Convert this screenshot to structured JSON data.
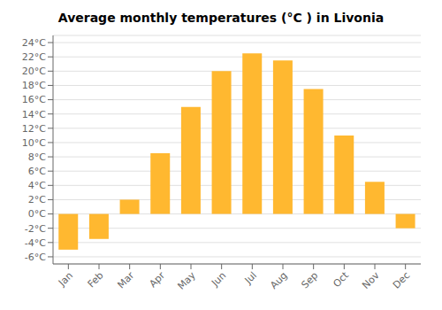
{
  "chart_data": {
    "type": "bar",
    "title": "Average monthly temperatures (°C ) in Livonia",
    "categories": [
      "Jan",
      "Feb",
      "Mar",
      "Apr",
      "May",
      "Jun",
      "Jul",
      "Aug",
      "Sep",
      "Oct",
      "Nov",
      "Dec"
    ],
    "values": [
      -5.0,
      -3.5,
      2.0,
      8.5,
      15.0,
      20.0,
      22.5,
      21.5,
      17.5,
      11.0,
      4.5,
      -2.0
    ],
    "color": "#FFB830",
    "ylim": [
      -7,
      25
    ],
    "yticks": [
      {
        "value": -6,
        "label": "-6°C"
      },
      {
        "value": -4,
        "label": "-4°C"
      },
      {
        "value": -2,
        "label": "-2°C"
      },
      {
        "value": 0,
        "label": "0°C"
      },
      {
        "value": 2,
        "label": "2°C"
      },
      {
        "value": 4,
        "label": "4°C"
      },
      {
        "value": 6,
        "label": "6°C"
      },
      {
        "value": 8,
        "label": "8°C"
      },
      {
        "value": 10,
        "label": "10°C"
      },
      {
        "value": 12,
        "label": "12°C"
      },
      {
        "value": 14,
        "label": "14°C"
      },
      {
        "value": 16,
        "label": "16°C"
      },
      {
        "value": 18,
        "label": "18°C"
      },
      {
        "value": 20,
        "label": "20°C"
      },
      {
        "value": 22,
        "label": "22°C"
      },
      {
        "value": 24,
        "label": "24°C"
      }
    ],
    "grid": true
  }
}
